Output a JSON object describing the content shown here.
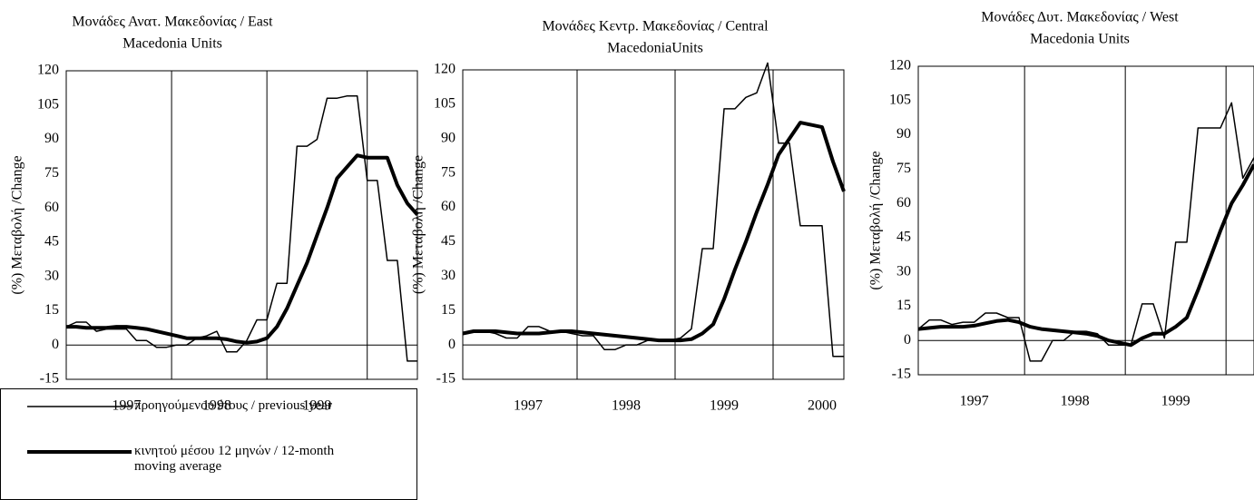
{
  "chart_data": [
    {
      "type": "line",
      "title": [
        "Μονάδες Ανατ. Μακεδονίας / East",
        "Macedonia Units"
      ],
      "y_label": "(%) Μεταβολή /Change",
      "categories": [
        null,
        null,
        null,
        null,
        null,
        null,
        "1997",
        null,
        null,
        null,
        null,
        null,
        null,
        null,
        null,
        "1998",
        null,
        null,
        null,
        null,
        null,
        null,
        null,
        null,
        null,
        "1999",
        null,
        null,
        null,
        null,
        null,
        null,
        null,
        null,
        null,
        null
      ],
      "ylim": [
        -15,
        120
      ],
      "yticks": [
        120,
        105,
        90,
        75,
        60,
        45,
        30,
        15,
        0,
        -15
      ],
      "legend": "bottom-left",
      "series": [
        {
          "name": "προηγούμενου έτους / previous year",
          "color": "#000000",
          "width": "thin",
          "values": [
            8,
            10,
            10,
            6,
            7,
            7,
            7,
            2,
            2,
            -1,
            -1,
            0,
            0,
            3,
            4,
            6,
            -3,
            -3,
            2,
            11,
            11,
            27,
            27,
            87,
            87,
            90,
            108,
            108,
            109,
            109,
            72,
            72,
            37,
            37,
            -7,
            -7
          ]
        },
        {
          "name": "κινητού μέσου 12 μηνών / 12-month moving average",
          "color": "#000000",
          "width": "thick",
          "values": [
            8,
            8,
            7.5,
            7.5,
            7.5,
            8,
            8,
            7.5,
            7,
            6,
            5,
            4,
            3,
            3,
            3,
            3,
            2.5,
            1.5,
            1,
            1.5,
            3,
            8,
            16,
            26,
            36,
            48,
            60,
            73,
            78,
            83,
            82,
            82,
            82,
            70,
            62,
            57
          ]
        }
      ]
    },
    {
      "type": "line",
      "title": [
        "Μονάδες Κεντρ. Μακεδονίας / Central",
        "MacedoniaUnits"
      ],
      "y_label": "(%) Μεταβολή /Change",
      "categories": [
        null,
        null,
        null,
        null,
        null,
        null,
        "1997",
        null,
        null,
        null,
        null,
        null,
        null,
        null,
        null,
        "1998",
        null,
        null,
        null,
        null,
        null,
        null,
        null,
        null,
        "1999",
        null,
        null,
        null,
        null,
        null,
        null,
        null,
        null,
        "2000",
        null,
        null
      ],
      "ylim": [
        -15,
        120
      ],
      "yticks": [
        120,
        105,
        90,
        75,
        60,
        45,
        30,
        15,
        0,
        -15
      ],
      "series": [
        {
          "color": "#000000",
          "width": "thin",
          "values": [
            5,
            6,
            6,
            5,
            3,
            3,
            8,
            8,
            6,
            6,
            5,
            4,
            4,
            -2,
            -2,
            0,
            0,
            2,
            2,
            2,
            3,
            7,
            42,
            42,
            103,
            103,
            108,
            110,
            123,
            88,
            88,
            52,
            52,
            52,
            -5,
            -5
          ]
        },
        {
          "color": "#000000",
          "width": "thick",
          "values": [
            5,
            6,
            6,
            6,
            5.5,
            5,
            5,
            5,
            5.5,
            6,
            6,
            5.5,
            5,
            4.5,
            4,
            3.5,
            3,
            2.5,
            2,
            2,
            2,
            2.5,
            5,
            9,
            20,
            33,
            45,
            58,
            70,
            83,
            90,
            97,
            96,
            95,
            80,
            67
          ]
        }
      ]
    },
    {
      "type": "line",
      "title": [
        "Μονάδες Δυτ. Μακεδονίας / West",
        "Macedonia Units"
      ],
      "y_label": "(%) Μεταβολή /Change",
      "categories": [
        null,
        null,
        null,
        null,
        null,
        "1997",
        null,
        null,
        null,
        null,
        null,
        null,
        null,
        null,
        "1998",
        null,
        null,
        null,
        null,
        null,
        null,
        null,
        null,
        "1999",
        null,
        null,
        null,
        null,
        null,
        null,
        null
      ],
      "ylim": [
        -15,
        120
      ],
      "yticks": [
        120,
        105,
        90,
        75,
        60,
        45,
        30,
        15,
        0,
        -15
      ],
      "series": [
        {
          "color": "#000000",
          "width": "thin",
          "values": [
            5,
            9,
            9,
            7,
            8,
            8,
            12,
            12,
            10,
            10,
            -9,
            -9,
            0,
            0,
            4,
            4,
            3,
            -2,
            -2,
            -2,
            16,
            16,
            1,
            43,
            43,
            93,
            93,
            93,
            104,
            71,
            80
          ]
        },
        {
          "color": "#000000",
          "width": "thick",
          "values": [
            5,
            5.5,
            6,
            6,
            6,
            6.5,
            7.5,
            8.5,
            9,
            8,
            6,
            5,
            4.5,
            4,
            3.5,
            3,
            2,
            0,
            -1,
            -2,
            1,
            3,
            3,
            6,
            10,
            22,
            35,
            48,
            60,
            68,
            77
          ]
        }
      ]
    }
  ]
}
